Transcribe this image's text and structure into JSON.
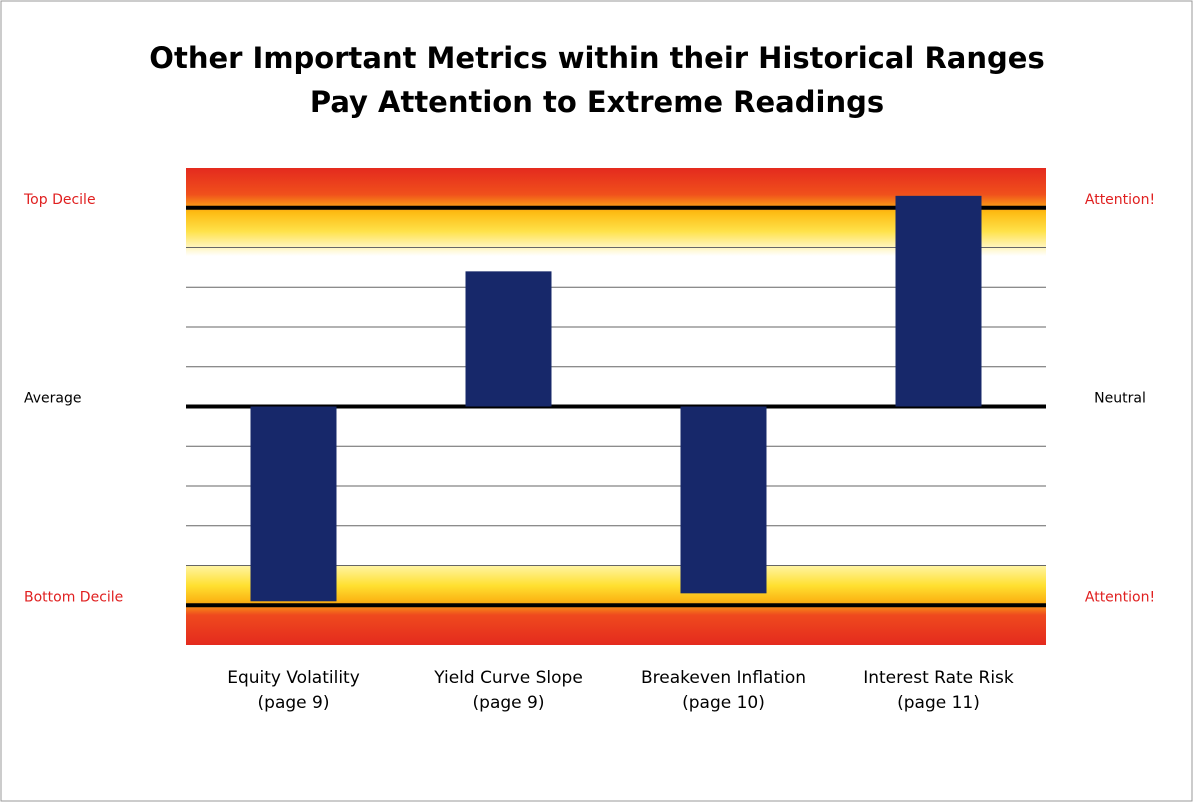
{
  "chart_data": {
    "type": "bar",
    "title": [
      "Other Important Metrics within their Historical Ranges",
      "Pay Attention to Extreme Readings"
    ],
    "categories": [
      [
        "Equity Volatility",
        "(page 9)"
      ],
      [
        "Yield Curve Slope",
        "(page 9)"
      ],
      [
        "Breakeven Inflation",
        "(page 10)"
      ],
      [
        "Interest Rate Risk",
        "(page 11)"
      ]
    ],
    "values": [
      -4.9,
      3.4,
      -4.7,
      5.3
    ],
    "color": "#17286a",
    "ylim": [
      -6,
      6
    ],
    "yticks": [
      -5,
      -4,
      -3,
      -2,
      -1,
      0,
      1,
      2,
      3,
      4,
      5
    ],
    "grid": true,
    "left_labels": [
      {
        "value": 5,
        "label": "Top Decile",
        "color": "#e02020"
      },
      {
        "value": 0,
        "label": "Average",
        "color": "#000000"
      },
      {
        "value": -5,
        "label": "Bottom Decile",
        "color": "#e02020"
      }
    ],
    "right_labels": [
      {
        "value": 5,
        "label": "Attention!",
        "color": "#e02020"
      },
      {
        "value": 0,
        "label": "Neutral",
        "color": "#000000"
      },
      {
        "value": -5,
        "label": "Attention!",
        "color": "#e02020"
      }
    ]
  }
}
